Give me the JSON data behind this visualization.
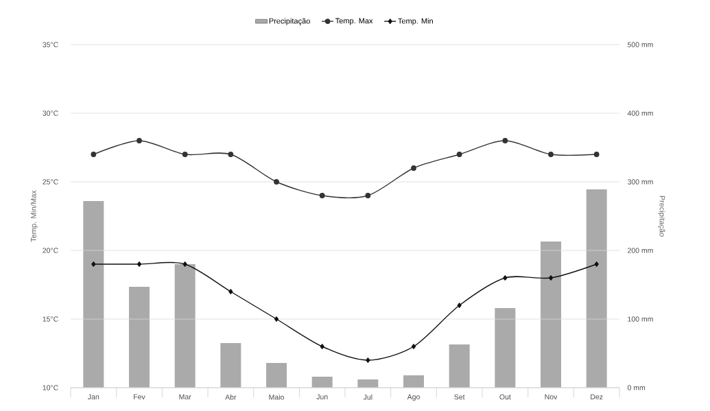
{
  "chart_data": {
    "type": "line",
    "categories": [
      "Jan",
      "Fev",
      "Mar",
      "Abr",
      "Maio",
      "Jun",
      "Jul",
      "Ago",
      "Set",
      "Out",
      "Nov",
      "Dez"
    ],
    "ylabel": "Temp. Min/Max",
    "y2label": "Precipitação",
    "ylim": [
      10,
      35
    ],
    "yticks": [
      {
        "value": 10,
        "label": "10°C"
      },
      {
        "value": 15,
        "label": "15°C"
      },
      {
        "value": 20,
        "label": "20°C"
      },
      {
        "value": 25,
        "label": "25°C"
      },
      {
        "value": 30,
        "label": "30°C"
      },
      {
        "value": 35,
        "label": "35°C"
      }
    ],
    "y2lim": [
      0,
      500
    ],
    "y2ticks": [
      {
        "value": 0,
        "label": "0 mm"
      },
      {
        "value": 100,
        "label": "100 mm"
      },
      {
        "value": 200,
        "label": "200 mm"
      },
      {
        "value": 300,
        "label": "300 mm"
      },
      {
        "value": 400,
        "label": "400 mm"
      },
      {
        "value": 500,
        "label": "500 mm"
      }
    ],
    "grid": "y",
    "legend": "top",
    "series": [
      {
        "name": "Precipitação",
        "type": "bar",
        "axis": "y2",
        "color": "#aaaaaa",
        "values": [
          272,
          147,
          180,
          65,
          36,
          16,
          12,
          18,
          63,
          116,
          213,
          289
        ]
      },
      {
        "name": "Temp. Max",
        "color": "#333333",
        "marker": "circle",
        "values": [
          27,
          28,
          27,
          27,
          25,
          24,
          24,
          26,
          27,
          28,
          27,
          27
        ]
      },
      {
        "name": "Temp. Min",
        "color": "#111111",
        "marker": "diamond",
        "values": [
          19,
          19,
          19,
          17,
          15,
          13,
          12,
          13,
          16,
          18,
          18,
          19
        ]
      }
    ]
  }
}
